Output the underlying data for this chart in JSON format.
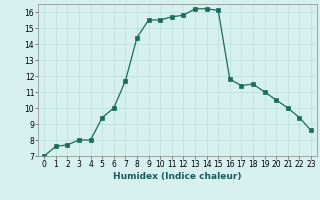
{
  "x": [
    0,
    1,
    2,
    3,
    4,
    5,
    6,
    7,
    8,
    9,
    10,
    11,
    12,
    13,
    14,
    15,
    16,
    17,
    18,
    19,
    20,
    21,
    22,
    23
  ],
  "y": [
    7.0,
    7.6,
    7.7,
    8.0,
    8.0,
    9.4,
    10.0,
    11.7,
    14.4,
    15.5,
    15.5,
    15.7,
    15.8,
    16.2,
    16.2,
    16.1,
    11.8,
    11.4,
    11.5,
    11.0,
    10.5,
    10.0,
    9.4,
    8.6
  ],
  "xlabel": "Humidex (Indice chaleur)",
  "line_color": "#1a6b5a",
  "marker_color": "#1a6b5a",
  "bg_color": "#d6f0f0",
  "grid_color": "#c0e0e0",
  "ylim": [
    7,
    16.5
  ],
  "xlim": [
    -0.5,
    23.5
  ],
  "yticks": [
    7,
    8,
    9,
    10,
    11,
    12,
    13,
    14,
    15,
    16
  ],
  "xticks": [
    0,
    1,
    2,
    3,
    4,
    5,
    6,
    7,
    8,
    9,
    10,
    11,
    12,
    13,
    14,
    15,
    16,
    17,
    18,
    19,
    20,
    21,
    22,
    23
  ],
  "tick_fontsize": 5.5,
  "xlabel_fontsize": 6.5,
  "line_width": 0.9,
  "marker_size": 2.2
}
